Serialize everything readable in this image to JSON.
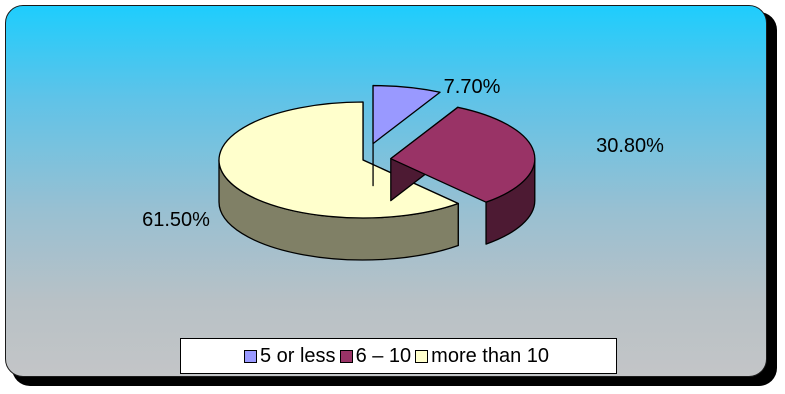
{
  "chart_data": {
    "type": "pie",
    "title": "",
    "categories": [
      "5 or less",
      "6 – 10",
      "more than 10"
    ],
    "values": [
      7.7,
      30.8,
      61.5
    ],
    "data_labels": [
      "7.70%",
      "30.80%",
      "61.50%"
    ],
    "colors": [
      "#9999ff",
      "#993366",
      "#ffffcc"
    ],
    "side_colors": [
      "#4c4c80",
      "#4d1a33",
      "#808066"
    ],
    "style": "3d-exploded",
    "legend_position": "bottom"
  },
  "legend": {
    "items": [
      {
        "label": "5 or less",
        "color": "#9999ff"
      },
      {
        "label": "6 – 10",
        "color": "#993366"
      },
      {
        "label": "more than 10",
        "color": "#ffffcc"
      }
    ]
  }
}
